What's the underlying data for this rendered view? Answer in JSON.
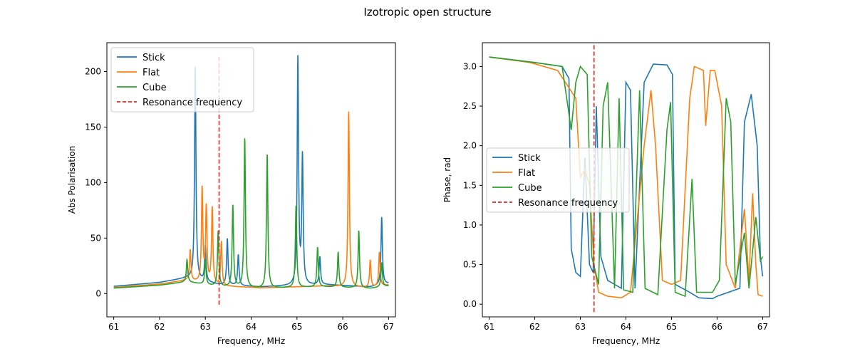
{
  "figure_title": "Izotropic open structure",
  "colors": {
    "stick": "#1f77b4",
    "flat": "#ff7f0e",
    "cube": "#2ca02c",
    "resonance": "#d62728"
  },
  "chart_data": [
    {
      "type": "line",
      "xlabel": "Frequency, MHz",
      "ylabel": "Abs Polarisation",
      "xlim": [
        60.85,
        67.15
      ],
      "ylim": [
        -21,
        226
      ],
      "xticks": [
        61,
        62,
        63,
        64,
        65,
        66,
        67
      ],
      "yticks": [
        0,
        50,
        100,
        150,
        200
      ],
      "ytick_labels": [
        "0",
        "50",
        "100",
        "150",
        "200"
      ],
      "legend": {
        "position": "upper-left",
        "entries": [
          "Stick",
          "Flat",
          "Cube",
          "Resonance frequency"
        ]
      },
      "resonance_line": {
        "x": 63.3,
        "y_range": [
          -10,
          215
        ],
        "style": "dashed"
      },
      "series": [
        {
          "name": "Stick",
          "peaks": [
            [
              62.78,
              193
            ],
            [
              63.0,
              32
            ],
            [
              63.48,
              42
            ],
            [
              63.72,
              28
            ],
            [
              65.02,
              204
            ],
            [
              65.12,
              115
            ],
            [
              65.5,
              25
            ],
            [
              66.85,
              61
            ]
          ]
        },
        {
          "name": "Flat",
          "peaks": [
            [
              62.67,
              28
            ],
            [
              62.93,
              85
            ],
            [
              63.02,
              68
            ],
            [
              63.15,
              69
            ],
            [
              63.35,
              40
            ],
            [
              66.13,
              158
            ],
            [
              66.6,
              25
            ],
            [
              66.8,
              31
            ]
          ]
        },
        {
          "name": "Cube",
          "peaks": [
            [
              62.6,
              20
            ],
            [
              63.0,
              22
            ],
            [
              63.28,
              50
            ],
            [
              63.6,
              74
            ],
            [
              63.86,
              135
            ],
            [
              64.35,
              121
            ],
            [
              64.98,
              74
            ],
            [
              65.45,
              36
            ],
            [
              65.9,
              32
            ],
            [
              66.35,
              52
            ],
            [
              66.85,
              22
            ]
          ]
        }
      ]
    },
    {
      "type": "line",
      "xlabel": "Frequency, MHz",
      "ylabel": "Phase, rad",
      "xlim": [
        60.85,
        67.15
      ],
      "ylim": [
        -0.16,
        3.3
      ],
      "xticks": [
        61,
        62,
        63,
        64,
        65,
        66,
        67
      ],
      "yticks": [
        0,
        0.5,
        1.0,
        1.5,
        2.0,
        2.5,
        3.0
      ],
      "ytick_labels": [
        "0.0",
        "0.5",
        "1.0",
        "1.5",
        "2.0",
        "2.5",
        "3.0"
      ],
      "legend": {
        "position": "center-left",
        "entries": [
          "Stick",
          "Flat",
          "Cube",
          "Resonance frequency"
        ]
      },
      "resonance_line": {
        "x": 63.3,
        "y_range": [
          -0.1,
          3.28
        ],
        "style": "dashed"
      },
      "series": [
        {
          "name": "Stick",
          "points": [
            [
              61.0,
              3.12
            ],
            [
              62.0,
              3.05
            ],
            [
              62.6,
              3.0
            ],
            [
              62.75,
              2.85
            ],
            [
              62.8,
              0.7
            ],
            [
              62.9,
              0.4
            ],
            [
              63.0,
              0.35
            ],
            [
              63.1,
              1.85
            ],
            [
              63.2,
              0.5
            ],
            [
              63.28,
              0.4
            ],
            [
              63.35,
              2.5
            ],
            [
              63.45,
              0.6
            ],
            [
              63.6,
              0.3
            ],
            [
              63.9,
              0.2
            ],
            [
              64.0,
              2.8
            ],
            [
              64.1,
              2.7
            ],
            [
              64.2,
              0.2
            ],
            [
              64.4,
              2.8
            ],
            [
              64.6,
              3.03
            ],
            [
              64.9,
              3.02
            ],
            [
              65.02,
              2.9
            ],
            [
              65.08,
              0.25
            ],
            [
              65.4,
              0.15
            ],
            [
              65.6,
              0.08
            ],
            [
              65.9,
              0.07
            ],
            [
              66.0,
              0.1
            ],
            [
              66.5,
              0.2
            ],
            [
              66.6,
              2.3
            ],
            [
              66.75,
              2.65
            ],
            [
              66.88,
              2.0
            ],
            [
              66.95,
              0.6
            ],
            [
              67.0,
              0.35
            ]
          ]
        },
        {
          "name": "Flat",
          "points": [
            [
              61.0,
              3.12
            ],
            [
              61.9,
              3.05
            ],
            [
              62.5,
              2.95
            ],
            [
              62.9,
              2.6
            ],
            [
              63.0,
              1.6
            ],
            [
              63.1,
              1.7
            ],
            [
              63.2,
              1.5
            ],
            [
              63.3,
              0.5
            ],
            [
              63.4,
              0.15
            ],
            [
              63.6,
              0.1
            ],
            [
              63.9,
              0.08
            ],
            [
              64.1,
              0.15
            ],
            [
              64.4,
              2.0
            ],
            [
              64.55,
              2.7
            ],
            [
              64.65,
              2.0
            ],
            [
              64.8,
              0.3
            ],
            [
              65.0,
              0.25
            ],
            [
              65.2,
              0.3
            ],
            [
              65.4,
              2.6
            ],
            [
              65.5,
              3.0
            ],
            [
              65.7,
              2.95
            ],
            [
              65.75,
              2.25
            ],
            [
              65.85,
              2.95
            ],
            [
              65.95,
              2.95
            ],
            [
              66.1,
              2.5
            ],
            [
              66.2,
              0.5
            ],
            [
              66.4,
              0.2
            ],
            [
              66.6,
              1.2
            ],
            [
              66.7,
              0.3
            ],
            [
              66.78,
              1.4
            ],
            [
              66.85,
              0.5
            ],
            [
              66.9,
              0.12
            ],
            [
              67.0,
              0.1
            ]
          ]
        },
        {
          "name": "Cube",
          "points": [
            [
              61.0,
              3.12
            ],
            [
              62.0,
              3.05
            ],
            [
              62.6,
              3.0
            ],
            [
              62.8,
              2.2
            ],
            [
              62.9,
              2.8
            ],
            [
              63.0,
              3.0
            ],
            [
              63.15,
              2.9
            ],
            [
              63.25,
              0.6
            ],
            [
              63.4,
              0.25
            ],
            [
              63.5,
              2.5
            ],
            [
              63.6,
              2.8
            ],
            [
              63.75,
              0.2
            ],
            [
              63.85,
              2.6
            ],
            [
              63.95,
              0.18
            ],
            [
              64.15,
              0.15
            ],
            [
              64.3,
              2.7
            ],
            [
              64.42,
              0.2
            ],
            [
              64.7,
              0.12
            ],
            [
              64.9,
              2.2
            ],
            [
              64.98,
              2.55
            ],
            [
              65.08,
              0.15
            ],
            [
              65.3,
              0.1
            ],
            [
              65.45,
              1.58
            ],
            [
              65.55,
              0.15
            ],
            [
              65.9,
              0.15
            ],
            [
              66.05,
              0.3
            ],
            [
              66.2,
              2.6
            ],
            [
              66.3,
              2.3
            ],
            [
              66.4,
              0.25
            ],
            [
              66.6,
              0.9
            ],
            [
              66.7,
              0.2
            ],
            [
              66.85,
              1.1
            ],
            [
              66.95,
              0.55
            ],
            [
              67.0,
              0.6
            ]
          ]
        }
      ]
    }
  ]
}
